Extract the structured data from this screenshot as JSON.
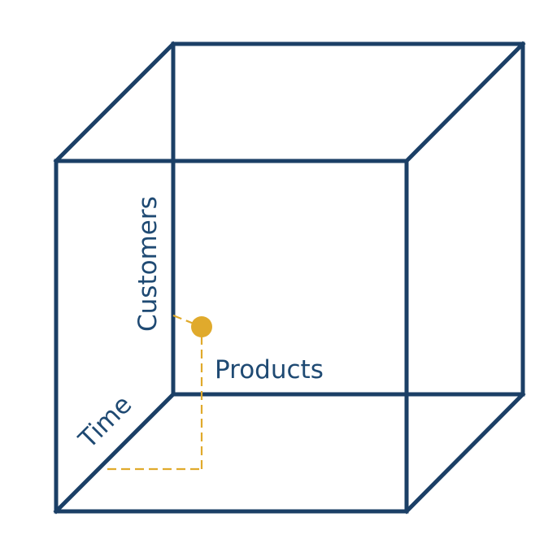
{
  "diagram": {
    "axes": {
      "customers": "Customers",
      "products": "Products",
      "time": "Time"
    },
    "colors": {
      "cube_edges": "#1b3f66",
      "labels": "#1f4a73",
      "data_point": "#e0aa2c",
      "guide_lines": "#e0aa2c",
      "background": "#ffffff"
    },
    "marker": "data-point-marker"
  }
}
